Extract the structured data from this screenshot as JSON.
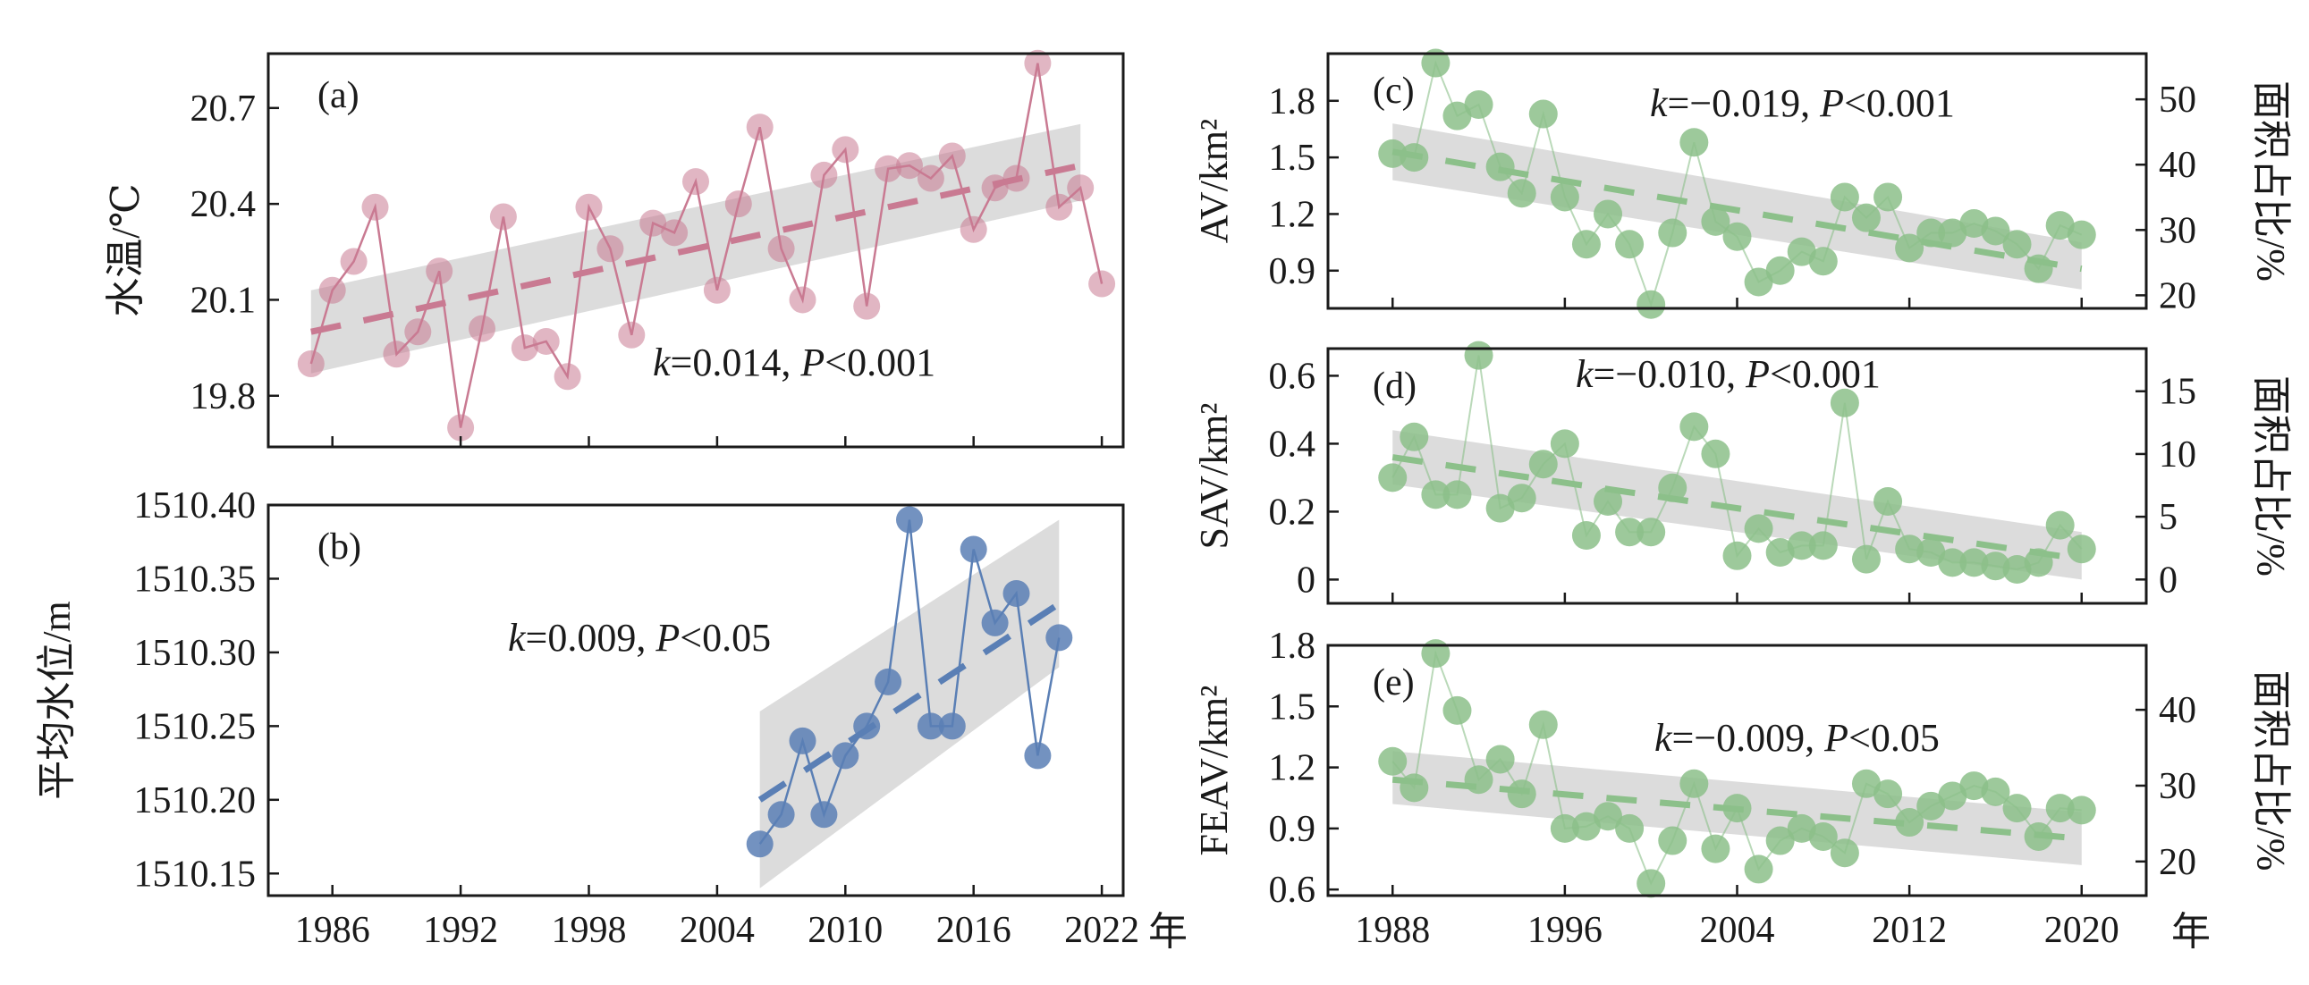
{
  "colors": {
    "a": "#c97a92",
    "b": "#5a7fb5",
    "green": "#8cc08a",
    "band": "#d0d0d0"
  },
  "x_unit": "年",
  "chart_data": [
    {
      "id": "a",
      "type": "line",
      "panel_label": "(a)",
      "ylabel": "水温/℃",
      "xlim": [
        1983,
        2023
      ],
      "xticks": [
        1986,
        1992,
        1998,
        2004,
        2010,
        2016,
        2022
      ],
      "ylim": [
        19.64,
        20.87
      ],
      "yticks": [
        19.8,
        20.1,
        20.4,
        20.7
      ],
      "ytick_labels": [
        "19.8",
        "20.1",
        "20.4",
        "20.7"
      ],
      "annotation": {
        "k_value": "=0.014, ",
        "p_value": "<0.001"
      },
      "series": [
        {
          "x": [
            1985,
            1986,
            1987,
            1988,
            1989,
            1990,
            1991,
            1992,
            1993,
            1994,
            1995,
            1996,
            1997,
            1998,
            1999,
            2000,
            2001,
            2002,
            2003,
            2004,
            2005,
            2006,
            2007,
            2008,
            2009,
            2010,
            2011,
            2012,
            2013,
            2014,
            2015,
            2016,
            2017,
            2018,
            2019,
            2020,
            2021,
            2022
          ],
          "y": [
            19.9,
            20.13,
            20.22,
            20.39,
            19.93,
            20.0,
            20.19,
            19.7,
            20.01,
            20.36,
            19.95,
            19.97,
            19.86,
            20.39,
            20.26,
            19.99,
            20.34,
            20.31,
            20.47,
            20.13,
            20.4,
            20.64,
            20.26,
            20.1,
            20.49,
            20.57,
            20.08,
            20.51,
            20.52,
            20.48,
            20.55,
            20.32,
            20.45,
            20.48,
            20.84,
            20.39,
            20.45,
            20.15
          ]
        }
      ],
      "trend": {
        "x": [
          1985,
          2021
        ],
        "y": [
          20.0,
          20.52
        ]
      },
      "band": {
        "x": [
          1985,
          2021
        ],
        "lower": [
          19.87,
          20.41
        ],
        "upper": [
          20.13,
          20.65
        ]
      }
    },
    {
      "id": "b",
      "type": "line",
      "panel_label": "(b)",
      "ylabel": "平均水位/m",
      "xlabel": "年",
      "xlim": [
        1983,
        2023
      ],
      "xticks": [
        1986,
        1992,
        1998,
        2004,
        2010,
        2016,
        2022
      ],
      "xtick_labels": [
        "1986",
        "1992",
        "1998",
        "2004",
        "2010",
        "2016",
        "2022"
      ],
      "ylim": [
        1510.135,
        1510.4
      ],
      "yticks": [
        1510.15,
        1510.2,
        1510.25,
        1510.3,
        1510.35,
        1510.4
      ],
      "ytick_labels": [
        "1510.15",
        "1510.20",
        "1510.25",
        "1510.30",
        "1510.35",
        "1510.40"
      ],
      "annotation": {
        "k_value": "=0.009, ",
        "p_value": "<0.05"
      },
      "series": [
        {
          "x": [
            2006,
            2007,
            2008,
            2009,
            2010,
            2011,
            2012,
            2013,
            2014,
            2015,
            2016,
            2017,
            2018,
            2019,
            2020
          ],
          "y": [
            1510.17,
            1510.19,
            1510.24,
            1510.19,
            1510.23,
            1510.25,
            1510.28,
            1510.39,
            1510.25,
            1510.25,
            1510.37,
            1510.32,
            1510.34,
            1510.23,
            1510.31
          ]
        }
      ],
      "trend": {
        "x": [
          2006,
          2020
        ],
        "y": [
          1510.2,
          1510.333
        ]
      },
      "band": {
        "x": [
          2006,
          2020
        ],
        "lower": [
          1510.14,
          1510.29
        ],
        "upper": [
          1510.26,
          1510.39
        ]
      }
    },
    {
      "id": "c",
      "type": "line",
      "panel_label": "(c)",
      "ylabel": "AV/km²",
      "y2label": "面积占比/%",
      "xlim": [
        1985,
        2023
      ],
      "xticks": [
        1988,
        1996,
        2004,
        2012,
        2020
      ],
      "ylim": [
        0.7,
        2.05
      ],
      "yticks": [
        0.9,
        1.2,
        1.5,
        1.8
      ],
      "ytick_labels": [
        "0.9",
        "1.2",
        "1.5",
        "1.8"
      ],
      "y2lim": [
        18.0,
        57.0
      ],
      "y2ticks": [
        20,
        30,
        40,
        50
      ],
      "y2tick_labels": [
        "20",
        "30",
        "40",
        "50"
      ],
      "annotation": {
        "k_value": "=−0.019, ",
        "p_value": "<0.001"
      },
      "series": [
        {
          "x": [
            1988,
            1989,
            1990,
            1991,
            1992,
            1993,
            1994,
            1995,
            1996,
            1997,
            1998,
            1999,
            2000,
            2001,
            2002,
            2003,
            2004,
            2005,
            2006,
            2007,
            2008,
            2009,
            2010,
            2011,
            2012,
            2013,
            2014,
            2015,
            2016,
            2017,
            2018,
            2019,
            2020
          ],
          "y": [
            1.52,
            1.5,
            2.0,
            1.72,
            1.78,
            1.45,
            1.31,
            1.73,
            1.29,
            1.04,
            1.2,
            1.04,
            0.72,
            1.1,
            1.58,
            1.16,
            1.08,
            0.84,
            0.9,
            1.0,
            0.95,
            1.29,
            1.18,
            1.29,
            1.02,
            1.1,
            1.1,
            1.15,
            1.11,
            1.04,
            0.91,
            1.14,
            1.09
          ]
        }
      ],
      "trend": {
        "x": [
          1988,
          2020
        ],
        "y": [
          1.53,
          0.91
        ]
      },
      "band": {
        "x": [
          1988,
          2020
        ],
        "lower": [
          1.38,
          0.8
        ],
        "upper": [
          1.68,
          1.05
        ]
      }
    },
    {
      "id": "d",
      "type": "line",
      "panel_label": "(d)",
      "ylabel": "SAV/km²",
      "y2label": "面积占比/%",
      "xlim": [
        1985,
        2023
      ],
      "xticks": [
        1988,
        1996,
        2004,
        2012,
        2020
      ],
      "ylim": [
        -0.07,
        0.68
      ],
      "yticks": [
        0,
        0.2,
        0.4,
        0.6
      ],
      "ytick_labels": [
        "0",
        "0.2",
        "0.4",
        "0.6"
      ],
      "y2lim": [
        -1.9,
        18.4
      ],
      "y2ticks": [
        0,
        5,
        10,
        15
      ],
      "y2tick_labels": [
        "0",
        "5",
        "10",
        "15"
      ],
      "annotation": {
        "k_value": "=−0.010, ",
        "p_value": "<0.001"
      },
      "series": [
        {
          "x": [
            1988,
            1989,
            1990,
            1991,
            1992,
            1993,
            1994,
            1995,
            1996,
            1997,
            1998,
            1999,
            2000,
            2001,
            2002,
            2003,
            2004,
            2005,
            2006,
            2007,
            2008,
            2009,
            2010,
            2011,
            2012,
            2013,
            2014,
            2015,
            2016,
            2017,
            2018,
            2019,
            2020
          ],
          "y": [
            0.3,
            0.42,
            0.25,
            0.25,
            0.66,
            0.21,
            0.24,
            0.34,
            0.4,
            0.13,
            0.23,
            0.14,
            0.14,
            0.27,
            0.45,
            0.37,
            0.07,
            0.15,
            0.08,
            0.1,
            0.1,
            0.52,
            0.06,
            0.23,
            0.09,
            0.08,
            0.05,
            0.05,
            0.04,
            0.03,
            0.05,
            0.16,
            0.09
          ]
        }
      ],
      "trend": {
        "x": [
          1988,
          2020
        ],
        "y": [
          0.36,
          0.06
        ]
      },
      "band": {
        "x": [
          1988,
          2020
        ],
        "lower": [
          0.28,
          0.0
        ],
        "upper": [
          0.44,
          0.14
        ]
      }
    },
    {
      "id": "e",
      "type": "line",
      "panel_label": "(e)",
      "ylabel": "FEAV/km²",
      "y2label": "面积占比/%",
      "xlabel": "年",
      "xlim": [
        1985,
        2023
      ],
      "xticks": [
        1988,
        1996,
        2004,
        2012,
        2020
      ],
      "xtick_labels": [
        "1988",
        "1996",
        "2004",
        "2012",
        "2020"
      ],
      "ylim": [
        0.57,
        1.8
      ],
      "yticks": [
        0.6,
        0.9,
        1.2,
        1.5,
        1.8
      ],
      "ytick_labels": [
        "0.6",
        "0.9",
        "1.2",
        "1.5",
        "1.8"
      ],
      "y2lim": [
        15.5,
        48.5
      ],
      "y2ticks": [
        20,
        30,
        40
      ],
      "y2tick_labels": [
        "20",
        "30",
        "40"
      ],
      "annotation": {
        "k_value": "=−0.009, ",
        "p_value": "<0.05"
      },
      "series": [
        {
          "x": [
            1988,
            1989,
            1990,
            1991,
            1992,
            1993,
            1994,
            1995,
            1996,
            1997,
            1998,
            1999,
            2000,
            2001,
            2002,
            2003,
            2004,
            2005,
            2006,
            2007,
            2008,
            2009,
            2010,
            2011,
            2012,
            2013,
            2014,
            2015,
            2016,
            2017,
            2018,
            2019,
            2020
          ],
          "y": [
            1.23,
            1.1,
            1.76,
            1.48,
            1.14,
            1.24,
            1.07,
            1.41,
            0.9,
            0.91,
            0.96,
            0.9,
            0.63,
            0.84,
            1.12,
            0.8,
            1.0,
            0.7,
            0.84,
            0.9,
            0.86,
            0.78,
            1.12,
            1.07,
            0.93,
            1.01,
            1.06,
            1.11,
            1.08,
            1.0,
            0.86,
            1.0,
            0.99
          ]
        }
      ],
      "trend": {
        "x": [
          1988,
          2020
        ],
        "y": [
          1.14,
          0.85
        ]
      },
      "band": {
        "x": [
          1988,
          2020
        ],
        "lower": [
          1.02,
          0.72
        ],
        "upper": [
          1.28,
          0.98
        ]
      }
    }
  ]
}
